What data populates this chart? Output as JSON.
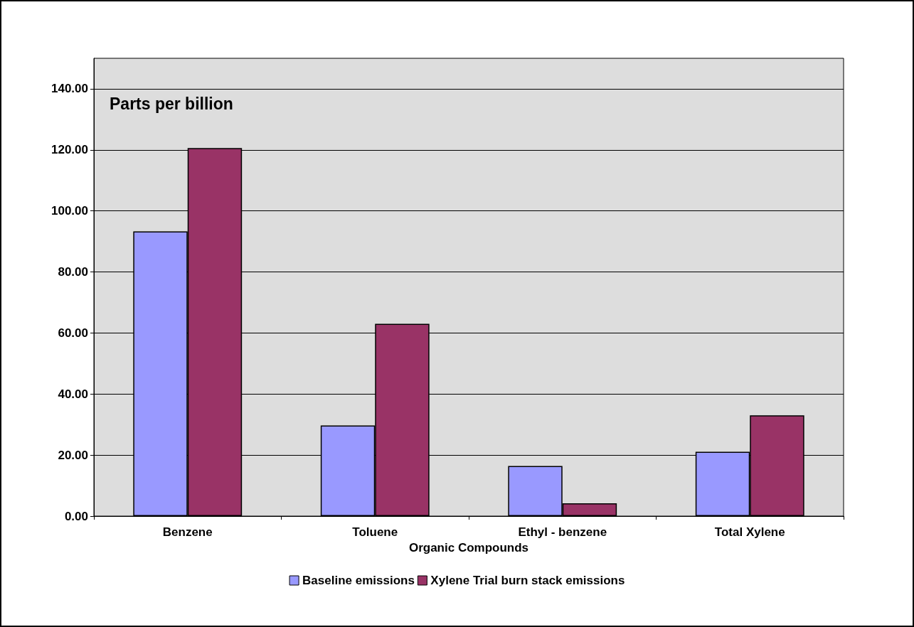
{
  "chart_data": {
    "type": "bar",
    "ylabel": "Parts per billion",
    "xlabel": "Organic Compounds",
    "categories": [
      "Benzene",
      "Toluene",
      "Ethyl - benzene",
      "Total Xylene"
    ],
    "series": [
      {
        "name": "Baseline emissions",
        "color": "#9999ff",
        "values": [
          93.3,
          29.7,
          16.4,
          21.1
        ]
      },
      {
        "name": "Xylene Trial burn stack emissions",
        "color": "#993366",
        "values": [
          120.6,
          63.0,
          4.2,
          33.0
        ]
      }
    ],
    "ylim": [
      0,
      150
    ],
    "yticks": [
      {
        "value": 0,
        "label": "0.00"
      },
      {
        "value": 20,
        "label": "20.00"
      },
      {
        "value": 40,
        "label": "40.00"
      },
      {
        "value": 60,
        "label": "60.00"
      },
      {
        "value": 80,
        "label": "80.00"
      },
      {
        "value": 100,
        "label": "100.00"
      },
      {
        "value": 120,
        "label": "120.00"
      },
      {
        "value": 140,
        "label": "140.00"
      }
    ],
    "grid": "y",
    "legend": "bottom"
  }
}
